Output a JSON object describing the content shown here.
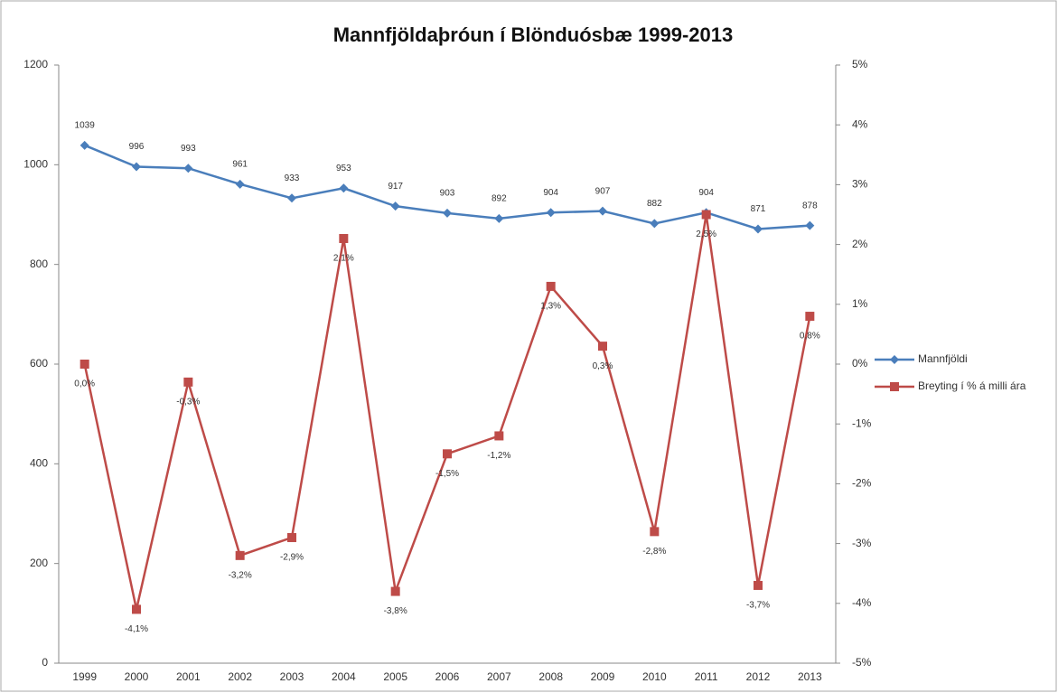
{
  "chart_data": {
    "type": "line",
    "title": "Mannfjöldaþróun í Blönduósbæ 1999-2013",
    "categories": [
      "1999",
      "2000",
      "2001",
      "2002",
      "2003",
      "2004",
      "2005",
      "2006",
      "2007",
      "2008",
      "2009",
      "2010",
      "2011",
      "2012",
      "2013"
    ],
    "series": [
      {
        "name": "Mannfjöldi",
        "color": "#4a7ebb",
        "marker": "diamond",
        "values": [
          1039,
          996,
          993,
          961,
          933,
          953,
          917,
          903,
          892,
          904,
          907,
          882,
          904,
          871,
          878
        ]
      },
      {
        "name": "Breyting í % á milli ára",
        "color": "#be4b48",
        "marker": "square",
        "axis": "y2",
        "values": [
          0.0,
          -4.1,
          -0.3,
          -3.2,
          -2.9,
          2.1,
          -3.8,
          -1.5,
          -1.2,
          1.3,
          0.3,
          -2.8,
          2.5,
          -3.7,
          0.8
        ],
        "value_labels": [
          "0,0%",
          "-4,1%",
          "-0,3%",
          "-3,2%",
          "-2,9%",
          "2,1%",
          "-3,8%",
          "-1,5%",
          "-1,2%",
          "1,3%",
          "0,3%",
          "-2,8%",
          "2,5%",
          "-3,7%",
          "0,8%"
        ]
      }
    ],
    "ylim": [
      0,
      1200
    ],
    "yticks": [
      0,
      200,
      400,
      600,
      800,
      1000,
      1200
    ],
    "y2lim": [
      -5,
      5
    ],
    "y2ticks": [
      {
        "value": -5,
        "label": "-5%"
      },
      {
        "value": -4,
        "label": "-4%"
      },
      {
        "value": -3,
        "label": "-3%"
      },
      {
        "value": -2,
        "label": "-2%"
      },
      {
        "value": -1,
        "label": "-1%"
      },
      {
        "value": 0,
        "label": "0%"
      },
      {
        "value": 1,
        "label": "1%"
      },
      {
        "value": 2,
        "label": "2%"
      },
      {
        "value": 3,
        "label": "3%"
      },
      {
        "value": 4,
        "label": "4%"
      },
      {
        "value": 5,
        "label": "5%"
      }
    ],
    "legend": "right",
    "grid": false
  }
}
